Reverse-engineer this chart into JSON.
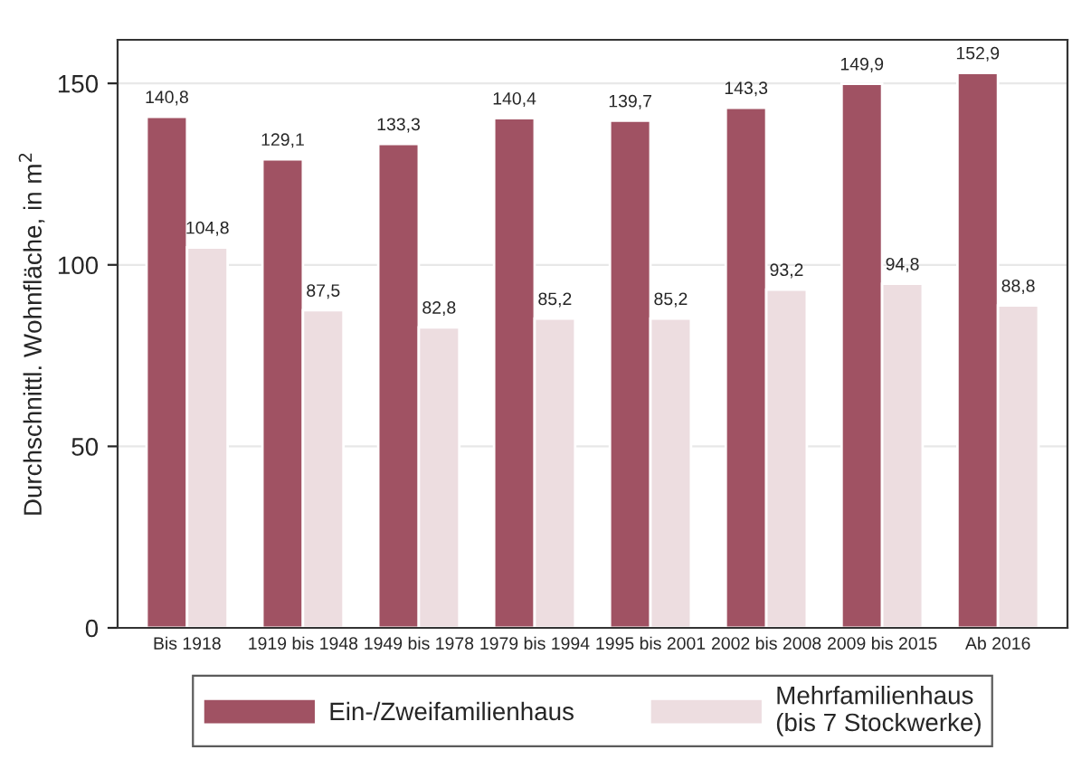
{
  "chart_data": {
    "type": "bar",
    "ylabel": "Durchschnittl. Wohnfläche, in m$^{2}$",
    "categories": [
      "Bis 1918",
      "1919 bis 1948",
      "1949 bis 1978",
      "1979 bis 1994",
      "1995 bis 2001",
      "2002 bis 2008",
      "2009 bis 2015",
      "Ab 2016"
    ],
    "series": [
      {
        "name": "Ein-/Zweifamilienhaus",
        "color": "#a05263",
        "values": [
          140.8,
          129.1,
          133.3,
          140.4,
          139.7,
          143.3,
          149.9,
          152.9
        ],
        "value_labels": [
          "140,8",
          "129,1",
          "133,3",
          "140,4",
          "139,7",
          "143,3",
          "149,9",
          "152,9"
        ]
      },
      {
        "name": "Mehrfamilienhaus\n(bis 7 Stockwerke)",
        "color": "#eddde0",
        "values": [
          104.8,
          87.5,
          82.8,
          85.2,
          85.2,
          93.2,
          94.8,
          88.8
        ],
        "value_labels": [
          "104,8",
          "87,5",
          "82,8",
          "85,2",
          "85,2",
          "93,2",
          "94,8",
          "88,8"
        ]
      }
    ],
    "ylim": [
      0,
      162
    ],
    "yticks": [
      0,
      50,
      100,
      150
    ],
    "grid": "y",
    "legend": "bottom"
  }
}
